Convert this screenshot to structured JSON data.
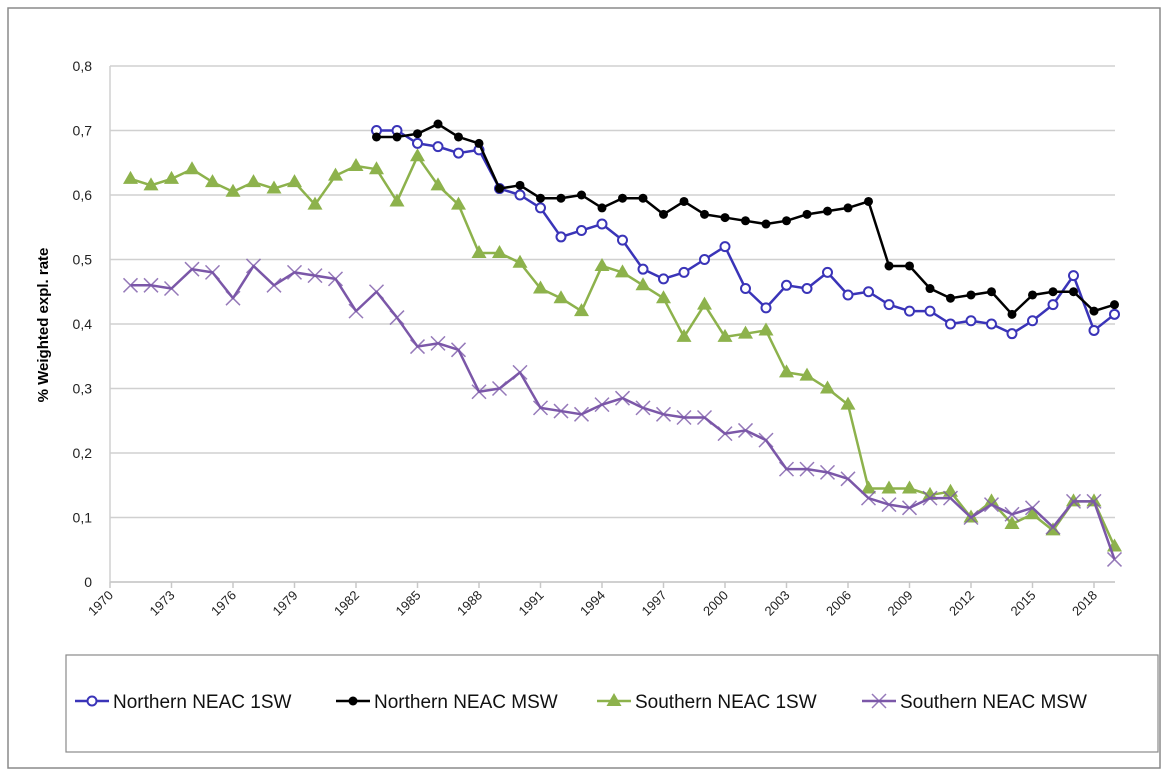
{
  "chart_data": {
    "type": "line",
    "title": "",
    "xlabel": "",
    "ylabel": "% Weighted expl. rate",
    "xlim": [
      1970,
      2019
    ],
    "ylim": [
      0,
      0.8
    ],
    "x_ticks": [
      "1970",
      "1973",
      "1976",
      "1979",
      "1982",
      "1985",
      "1988",
      "1991",
      "1994",
      "1997",
      "2000",
      "2003",
      "2006",
      "2009",
      "2012",
      "2015",
      "2018"
    ],
    "y_ticks": [
      "0",
      "0,1",
      "0,2",
      "0,3",
      "0,4",
      "0,5",
      "0,6",
      "0,7",
      "0,8"
    ],
    "grid": "horizontal",
    "legend_placement": "bottom",
    "series": [
      {
        "name": "Northern NEAC 1SW",
        "color": "#3a34b8",
        "marker": "circle",
        "start_year": 1983,
        "values": [
          0.7,
          0.7,
          0.68,
          0.675,
          0.665,
          0.67,
          0.61,
          0.6,
          0.58,
          0.535,
          0.545,
          0.555,
          0.53,
          0.485,
          0.47,
          0.48,
          0.5,
          0.52,
          0.455,
          0.425,
          0.46,
          0.455,
          0.48,
          0.445,
          0.45,
          0.43,
          0.42,
          0.42,
          0.4,
          0.405,
          0.4,
          0.385,
          0.405,
          0.43,
          0.475,
          0.39,
          0.415
        ]
      },
      {
        "name": "Northern NEAC MSW",
        "color": "#000000",
        "marker": "dot",
        "start_year": 1983,
        "values": [
          0.69,
          0.69,
          0.695,
          0.71,
          0.69,
          0.68,
          0.61,
          0.615,
          0.595,
          0.595,
          0.6,
          0.58,
          0.595,
          0.595,
          0.57,
          0.59,
          0.57,
          0.565,
          0.56,
          0.555,
          0.56,
          0.57,
          0.575,
          0.58,
          0.59,
          0.49,
          0.49,
          0.455,
          0.44,
          0.445,
          0.45,
          0.415,
          0.445,
          0.45,
          0.45,
          0.42,
          0.43
        ]
      },
      {
        "name": "Southern NEAC 1SW",
        "color": "#8db24c",
        "marker": "triangle",
        "start_year": 1971,
        "values": [
          0.625,
          0.615,
          0.625,
          0.64,
          0.62,
          0.605,
          0.62,
          0.61,
          0.62,
          0.585,
          0.63,
          0.645,
          0.64,
          0.59,
          0.66,
          0.615,
          0.585,
          0.51,
          0.51,
          0.495,
          0.455,
          0.44,
          0.42,
          0.49,
          0.48,
          0.46,
          0.44,
          0.38,
          0.43,
          0.38,
          0.385,
          0.39,
          0.325,
          0.32,
          0.3,
          0.275,
          0.145,
          0.145,
          0.145,
          0.135,
          0.14,
          0.1,
          0.125,
          0.09,
          0.105,
          0.08,
          0.125,
          0.125,
          0.055
        ]
      },
      {
        "name": "Southern NEAC MSW",
        "color": "#7b57a8",
        "marker": "x",
        "start_year": 1971,
        "values": [
          0.46,
          0.46,
          0.455,
          0.485,
          0.48,
          0.44,
          0.49,
          0.46,
          0.48,
          0.475,
          0.47,
          0.42,
          0.45,
          0.41,
          0.365,
          0.37,
          0.36,
          0.295,
          0.3,
          0.325,
          0.27,
          0.265,
          0.26,
          0.275,
          0.285,
          0.27,
          0.26,
          0.255,
          0.255,
          0.23,
          0.235,
          0.22,
          0.175,
          0.175,
          0.17,
          0.16,
          0.13,
          0.12,
          0.115,
          0.13,
          0.13,
          0.1,
          0.12,
          0.105,
          0.115,
          0.085,
          0.125,
          0.125,
          0.035
        ]
      }
    ]
  }
}
